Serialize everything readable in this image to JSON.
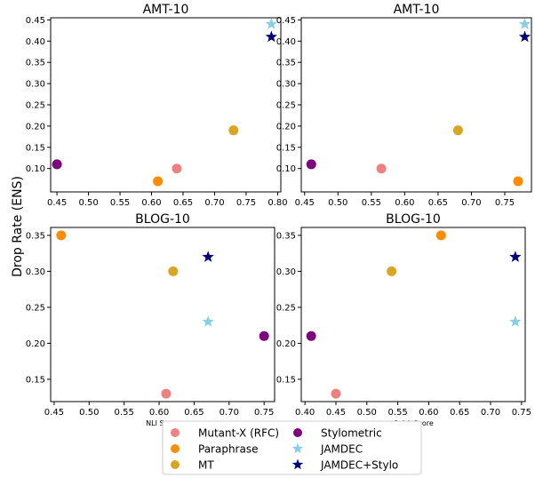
{
  "figure": {
    "ylabel": "Drop Rate (ENS)"
  },
  "legend": {
    "placement": "bottom-center",
    "columns": [
      [
        {
          "label": "Mutant-X (RFC)",
          "marker": "circle",
          "color": "#f08080"
        },
        {
          "label": "Paraphrase",
          "marker": "circle",
          "color": "#ff8c00"
        },
        {
          "label": "MT",
          "marker": "circle",
          "color": "#daa520"
        }
      ],
      [
        {
          "label": "Stylometric",
          "marker": "circle",
          "color": "#800080"
        },
        {
          "label": "JAMDEC",
          "marker": "star",
          "color": "#87ceeb"
        },
        {
          "label": "JAMDEC+Stylo",
          "marker": "star",
          "color": "#000080"
        }
      ]
    ]
  },
  "chart_data": [
    {
      "type": "scatter",
      "title": "AMT-10",
      "xlabel": "",
      "xlim": [
        0.44,
        0.805
      ],
      "ylim": [
        0.045,
        0.455
      ],
      "xticks": [
        "0.45",
        "0.50",
        "0.55",
        "0.60",
        "0.65",
        "0.70",
        "0.75",
        "0.80"
      ],
      "yticks": [
        "0.10",
        "0.15",
        "0.20",
        "0.25",
        "0.30",
        "0.35",
        "0.40",
        "0.45"
      ],
      "series": [
        {
          "name": "Mutant-X (RFC)",
          "marker": "circle",
          "color": "#f08080",
          "x": [
            0.64
          ],
          "y": [
            0.1
          ]
        },
        {
          "name": "Paraphrase",
          "marker": "circle",
          "color": "#ff8c00",
          "x": [
            0.61
          ],
          "y": [
            0.07
          ]
        },
        {
          "name": "MT",
          "marker": "circle",
          "color": "#daa520",
          "x": [
            0.73
          ],
          "y": [
            0.19
          ]
        },
        {
          "name": "Stylometric",
          "marker": "circle",
          "color": "#800080",
          "x": [
            0.45
          ],
          "y": [
            0.11
          ]
        },
        {
          "name": "JAMDEC",
          "marker": "star",
          "color": "#87ceeb",
          "x": [
            0.79
          ],
          "y": [
            0.44
          ]
        },
        {
          "name": "JAMDEC+Stylo",
          "marker": "star",
          "color": "#000080",
          "x": [
            0.79
          ],
          "y": [
            0.41
          ]
        }
      ]
    },
    {
      "type": "scatter",
      "title": "AMT-10",
      "xlabel": "",
      "xlim": [
        0.445,
        0.79
      ],
      "ylim": [
        0.045,
        0.455
      ],
      "xticks": [
        "0.45",
        "0.50",
        "0.55",
        "0.60",
        "0.65",
        "0.70",
        "0.75"
      ],
      "yticks": [
        "0.10",
        "0.15",
        "0.20",
        "0.25",
        "0.30",
        "0.35",
        "0.40",
        "0.45"
      ],
      "series": [
        {
          "name": "Mutant-X (RFC)",
          "marker": "circle",
          "color": "#f08080",
          "x": [
            0.565
          ],
          "y": [
            0.1
          ]
        },
        {
          "name": "Paraphrase",
          "marker": "circle",
          "color": "#ff8c00",
          "x": [
            0.77
          ],
          "y": [
            0.07
          ]
        },
        {
          "name": "MT",
          "marker": "circle",
          "color": "#daa520",
          "x": [
            0.68
          ],
          "y": [
            0.19
          ]
        },
        {
          "name": "Stylometric",
          "marker": "circle",
          "color": "#800080",
          "x": [
            0.46
          ],
          "y": [
            0.11
          ]
        },
        {
          "name": "JAMDEC",
          "marker": "star",
          "color": "#87ceeb",
          "x": [
            0.78
          ],
          "y": [
            0.44
          ]
        },
        {
          "name": "JAMDEC+Stylo",
          "marker": "star",
          "color": "#000080",
          "x": [
            0.78
          ],
          "y": [
            0.41
          ]
        }
      ]
    },
    {
      "type": "scatter",
      "title": "BLOG-10",
      "xlabel": "NLI Score",
      "xlim": [
        0.445,
        0.765
      ],
      "ylim": [
        0.119,
        0.361
      ],
      "xticks": [
        "0.45",
        "0.50",
        "0.55",
        "0.60",
        "0.65",
        "0.70",
        "0.75"
      ],
      "yticks": [
        "0.15",
        "0.20",
        "0.25",
        "0.30",
        "0.35"
      ],
      "series": [
        {
          "name": "Mutant-X (RFC)",
          "marker": "circle",
          "color": "#f08080",
          "x": [
            0.61
          ],
          "y": [
            0.13
          ]
        },
        {
          "name": "Paraphrase",
          "marker": "circle",
          "color": "#ff8c00",
          "x": [
            0.46
          ],
          "y": [
            0.35
          ]
        },
        {
          "name": "MT",
          "marker": "circle",
          "color": "#daa520",
          "x": [
            0.62
          ],
          "y": [
            0.3
          ]
        },
        {
          "name": "Stylometric",
          "marker": "circle",
          "color": "#800080",
          "x": [
            0.75
          ],
          "y": [
            0.21
          ]
        },
        {
          "name": "JAMDEC",
          "marker": "star",
          "color": "#87ceeb",
          "x": [
            0.67
          ],
          "y": [
            0.23
          ]
        },
        {
          "name": "JAMDEC+Stylo",
          "marker": "star",
          "color": "#000080",
          "x": [
            0.67
          ],
          "y": [
            0.32
          ]
        }
      ]
    },
    {
      "type": "scatter",
      "title": "BLOG-10",
      "xlabel": "CoLA Score",
      "xlim": [
        0.394,
        0.756
      ],
      "ylim": [
        0.119,
        0.361
      ],
      "xticks": [
        "0.40",
        "0.45",
        "0.50",
        "0.55",
        "0.60",
        "0.65",
        "0.70",
        "0.75"
      ],
      "yticks": [
        "0.15",
        "0.20",
        "0.25",
        "0.30",
        "0.35"
      ],
      "series": [
        {
          "name": "Mutant-X (RFC)",
          "marker": "circle",
          "color": "#f08080",
          "x": [
            0.45
          ],
          "y": [
            0.13
          ]
        },
        {
          "name": "Paraphrase",
          "marker": "circle",
          "color": "#ff8c00",
          "x": [
            0.62
          ],
          "y": [
            0.35
          ]
        },
        {
          "name": "MT",
          "marker": "circle",
          "color": "#daa520",
          "x": [
            0.54
          ],
          "y": [
            0.3
          ]
        },
        {
          "name": "Stylometric",
          "marker": "circle",
          "color": "#800080",
          "x": [
            0.41
          ],
          "y": [
            0.21
          ]
        },
        {
          "name": "JAMDEC",
          "marker": "star",
          "color": "#87ceeb",
          "x": [
            0.74
          ],
          "y": [
            0.23
          ]
        },
        {
          "name": "JAMDEC+Stylo",
          "marker": "star",
          "color": "#000080",
          "x": [
            0.74
          ],
          "y": [
            0.32
          ]
        }
      ]
    }
  ]
}
